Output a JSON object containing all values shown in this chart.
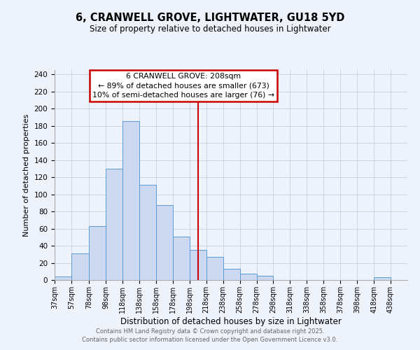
{
  "title": "6, CRANWELL GROVE, LIGHTWATER, GU18 5YD",
  "subtitle": "Size of property relative to detached houses in Lightwater",
  "xlabel": "Distribution of detached houses by size in Lightwater",
  "ylabel": "Number of detached properties",
  "bin_edges": [
    37,
    57,
    78,
    98,
    118,
    138,
    158,
    178,
    198,
    218,
    238,
    258,
    278,
    298,
    318,
    338,
    358,
    378,
    398,
    418,
    438,
    458
  ],
  "bin_labels": [
    "37sqm",
    "57sqm",
    "78sqm",
    "98sqm",
    "118sqm",
    "138sqm",
    "158sqm",
    "178sqm",
    "198sqm",
    "218sqm",
    "238sqm",
    "258sqm",
    "278sqm",
    "298sqm",
    "318sqm",
    "338sqm",
    "358sqm",
    "378sqm",
    "398sqm",
    "418sqm",
    "438sqm"
  ],
  "counts": [
    4,
    31,
    63,
    130,
    185,
    111,
    87,
    51,
    35,
    27,
    13,
    7,
    5,
    0,
    0,
    0,
    0,
    0,
    0,
    3,
    0
  ],
  "bar_facecolor": "#ccd9f0",
  "bar_edgecolor": "#5b9bd5",
  "grid_color": "#c8cfe0",
  "background_color": "#eef2fb",
  "plot_bg_color": "#eef2fb",
  "vline_x": 208,
  "vline_color": "#cc0000",
  "annotation_title": "6 CRANWELL GROVE: 208sqm",
  "annotation_line1": "← 89% of detached houses are smaller (673)",
  "annotation_line2": "10% of semi-detached houses are larger (76) →",
  "ylim": [
    0,
    245
  ],
  "yticks": [
    0,
    20,
    40,
    60,
    80,
    100,
    120,
    140,
    160,
    180,
    200,
    220,
    240
  ],
  "footer1": "Contains HM Land Registry data © Crown copyright and database right 2025.",
  "footer2": "Contains public sector information licensed under the Open Government Licence v3.0."
}
